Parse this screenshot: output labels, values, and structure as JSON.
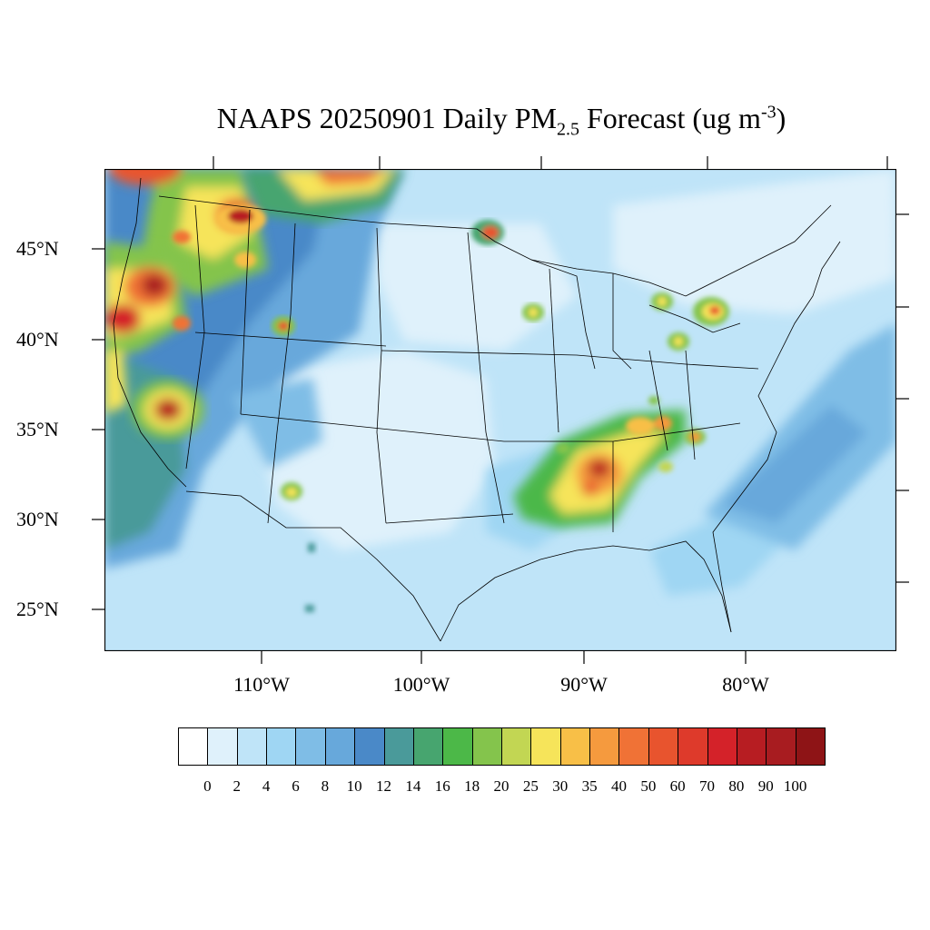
{
  "title": {
    "prefix": "NAAPS 20250901 Daily PM",
    "subscript": "2.5",
    "middle": " Forecast (ug m",
    "superscript": "-3",
    "suffix": ")"
  },
  "map": {
    "projection": "lambert-conformal",
    "region": "Contiguous United States",
    "lat_labels": [
      "45°N",
      "40°N",
      "35°N",
      "30°N",
      "25°N"
    ],
    "lon_labels": [
      "110°W",
      "100°W",
      "90°W",
      "80°W"
    ]
  },
  "colorbar": {
    "labels": [
      "0",
      "2",
      "4",
      "6",
      "8",
      "10",
      "12",
      "14",
      "16",
      "18",
      "20",
      "25",
      "30",
      "35",
      "40",
      "50",
      "60",
      "70",
      "80",
      "90",
      "100"
    ],
    "colors": [
      "#ffffff",
      "#dff1fb",
      "#bfe4f8",
      "#9fd6f3",
      "#7fbde6",
      "#67a8db",
      "#4a89c8",
      "#4a9a9a",
      "#47a56f",
      "#4cb848",
      "#84c44c",
      "#c2d653",
      "#f6e45a",
      "#f8bf47",
      "#f59a3e",
      "#f07236",
      "#e8542e",
      "#de3a2b",
      "#d42229",
      "#b71d22",
      "#a81c20",
      "#8e1416"
    ]
  },
  "hotspots": [
    {
      "name": "pacific-northwest-smoke",
      "level": "80-100"
    },
    {
      "name": "northern-california-smoke",
      "level": "100"
    },
    {
      "name": "central-california-smoke",
      "level": "90"
    },
    {
      "name": "montana-idaho-smoke",
      "level": "80"
    },
    {
      "name": "canada-border-smoke",
      "level": "50-70"
    },
    {
      "name": "minnesota-fire",
      "level": "60"
    },
    {
      "name": "utah-fire",
      "level": "50"
    },
    {
      "name": "arizona-fire",
      "level": "35"
    },
    {
      "name": "wisconsin-fire",
      "level": "30"
    },
    {
      "name": "ontario-fire",
      "level": "60"
    },
    {
      "name": "michigan-fire",
      "level": "25"
    },
    {
      "name": "lower-mississippi-valley",
      "level": "80"
    },
    {
      "name": "tennessee-valley",
      "level": "40"
    },
    {
      "name": "carolinas",
      "level": "40"
    }
  ]
}
